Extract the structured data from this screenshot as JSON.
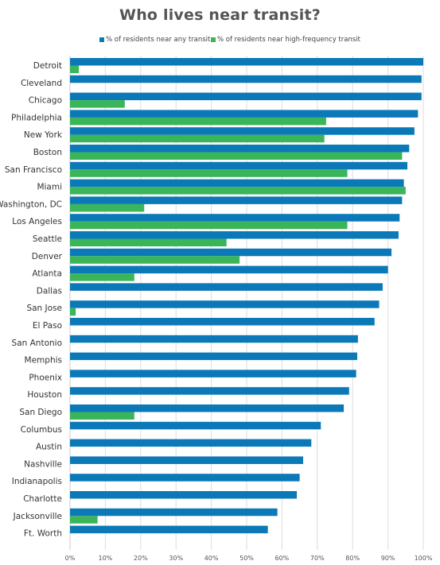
{
  "chart_data": {
    "type": "bar",
    "orientation": "horizontal",
    "title": "Who lives near transit?",
    "categories": [
      "Detroit",
      "Cleveland",
      "Chicago",
      "Philadelphia",
      "New York",
      "Boston",
      "San Francisco",
      "Miami",
      "Washington, DC",
      "Los Angeles",
      "Seattle",
      "Denver",
      "Atlanta",
      "Dallas",
      "San Jose",
      "El Paso",
      "San Antonio",
      "Memphis",
      "Phoenix",
      "Houston",
      "San Diego",
      "Columbus",
      "Austin",
      "Nashville",
      "Indianapolis",
      "Charlotte",
      "Jacksonville",
      "Ft. Worth"
    ],
    "series": [
      {
        "name": "% of residents near any transit",
        "color": "#0b79b8",
        "values": [
          100,
          99.5,
          99.5,
          98.5,
          97.5,
          96,
          95.5,
          94.5,
          94,
          93.3,
          93,
          91,
          90,
          88.5,
          87.5,
          86.2,
          81.5,
          81.3,
          81,
          79,
          77.5,
          71,
          68.3,
          66,
          65,
          64.2,
          58.7,
          56
        ]
      },
      {
        "name": "% of residents near high-frequency transit",
        "color": "#3ab55a",
        "values": [
          2.5,
          null,
          15.5,
          72.5,
          72,
          94,
          78.5,
          95,
          21,
          78.5,
          44.3,
          48,
          18.2,
          null,
          1.6,
          null,
          null,
          null,
          null,
          null,
          18.2,
          null,
          null,
          null,
          null,
          null,
          7.8,
          null
        ]
      }
    ],
    "x_ticks": [
      "0%",
      "10%",
      "20%",
      "30%",
      "40%",
      "50%",
      "60%",
      "70%",
      "80%",
      "90%",
      "100%"
    ],
    "xlim": [
      0,
      100
    ],
    "grid": true,
    "legend_position": "top"
  }
}
